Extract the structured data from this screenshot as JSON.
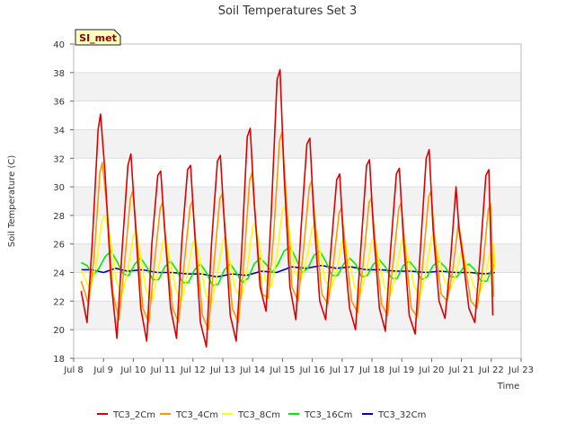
{
  "chart_data": {
    "type": "line",
    "title": "Soil Temperatures Set 3",
    "xlabel": "Time",
    "ylabel": "Soil Temperature (C)",
    "badge": "SI_met",
    "xlim": [
      8.0,
      23.0
    ],
    "ylim": [
      18,
      40
    ],
    "yticks": [
      18,
      20,
      22,
      24,
      26,
      28,
      30,
      32,
      34,
      36,
      38,
      40
    ],
    "xticks": [
      {
        "value": 8,
        "label": "Jul 8"
      },
      {
        "value": 9,
        "label": "Jul 9"
      },
      {
        "value": 10,
        "label": "Jul 10"
      },
      {
        "value": 11,
        "label": "Jul 11"
      },
      {
        "value": 12,
        "label": "Jul 12"
      },
      {
        "value": 13,
        "label": "Jul 13"
      },
      {
        "value": 14,
        "label": "Jul 14"
      },
      {
        "value": 15,
        "label": "Jul 15"
      },
      {
        "value": 16,
        "label": "Jul 16"
      },
      {
        "value": 17,
        "label": "Jul 17"
      },
      {
        "value": 18,
        "label": "Jul 18"
      },
      {
        "value": 19,
        "label": "Jul 19"
      },
      {
        "value": 20,
        "label": "Jul 20"
      },
      {
        "value": 21,
        "label": "Jul 21"
      },
      {
        "value": 22,
        "label": "Jul 22"
      },
      {
        "value": 23,
        "label": "Jul 23"
      }
    ],
    "band_color": "#f2f2f2",
    "series": [
      {
        "name": "TC3_2Cm",
        "color": "#dd0000",
        "x": [
          8.25,
          8.45,
          8.62,
          8.82,
          8.9,
          9.05,
          9.25,
          9.45,
          9.62,
          9.82,
          9.92,
          10.05,
          10.25,
          10.45,
          10.62,
          10.82,
          10.92,
          11.05,
          11.25,
          11.45,
          11.62,
          11.82,
          11.92,
          12.05,
          12.25,
          12.45,
          12.62,
          12.82,
          12.92,
          13.05,
          13.25,
          13.45,
          13.62,
          13.82,
          13.92,
          14.05,
          14.25,
          14.45,
          14.62,
          14.82,
          14.92,
          15.05,
          15.25,
          15.45,
          15.62,
          15.82,
          15.92,
          16.05,
          16.25,
          16.45,
          16.62,
          16.82,
          16.92,
          17.05,
          17.25,
          17.45,
          17.62,
          17.82,
          17.92,
          18.05,
          18.25,
          18.45,
          18.62,
          18.82,
          18.92,
          19.05,
          19.25,
          19.45,
          19.62,
          19.82,
          19.92,
          20.05,
          20.25,
          20.45,
          20.62,
          20.82,
          20.92,
          21.05,
          21.25,
          21.45,
          21.62,
          21.82,
          21.92,
          22.05
        ],
        "y": [
          22.7,
          20.5,
          26.0,
          34.0,
          35.1,
          31.0,
          23.5,
          19.4,
          25.5,
          31.5,
          32.3,
          28.0,
          21.5,
          19.2,
          26.0,
          30.8,
          31.1,
          27.0,
          21.5,
          19.4,
          26.0,
          31.2,
          31.5,
          27.0,
          20.5,
          18.8,
          26.0,
          31.8,
          32.2,
          27.5,
          21.0,
          19.2,
          25.0,
          33.5,
          34.1,
          29.0,
          23.0,
          21.3,
          28.0,
          37.5,
          38.2,
          31.0,
          23.0,
          20.7,
          27.0,
          33.0,
          33.4,
          28.0,
          22.0,
          20.7,
          25.5,
          30.5,
          30.9,
          26.0,
          21.5,
          20.0,
          25.5,
          31.5,
          31.9,
          27.0,
          21.5,
          19.9,
          25.5,
          30.9,
          31.3,
          26.5,
          21.0,
          19.7,
          25.5,
          32.0,
          32.6,
          27.0,
          22.0,
          20.8,
          24.5,
          30.0,
          27.0,
          25.0,
          21.5,
          20.5,
          25.0,
          30.8,
          31.2,
          21.0
        ]
      },
      {
        "name": "TC3_4Cm",
        "color": "#ff9900",
        "x": [
          8.25,
          8.5,
          8.68,
          8.88,
          8.96,
          9.12,
          9.32,
          9.52,
          9.7,
          9.9,
          9.98,
          10.12,
          10.32,
          10.52,
          10.7,
          10.9,
          10.98,
          11.12,
          11.32,
          11.52,
          11.7,
          11.9,
          11.98,
          12.12,
          12.32,
          12.52,
          12.7,
          12.9,
          12.98,
          13.12,
          13.32,
          13.52,
          13.7,
          13.9,
          13.98,
          14.12,
          14.32,
          14.52,
          14.7,
          14.9,
          14.98,
          15.12,
          15.32,
          15.52,
          15.7,
          15.9,
          15.98,
          16.12,
          16.32,
          16.52,
          16.7,
          16.9,
          16.98,
          17.12,
          17.32,
          17.52,
          17.7,
          17.9,
          17.98,
          18.12,
          18.32,
          18.52,
          18.7,
          18.9,
          18.98,
          19.12,
          19.32,
          19.52,
          19.7,
          19.9,
          19.98,
          20.12,
          20.32,
          20.52,
          20.7,
          20.9,
          20.98,
          21.12,
          21.32,
          21.52,
          21.7,
          21.9,
          21.98,
          22.08
        ],
        "y": [
          23.4,
          21.8,
          25.0,
          31.0,
          31.7,
          28.5,
          22.5,
          20.7,
          24.5,
          29.2,
          29.7,
          26.5,
          21.5,
          20.5,
          24.5,
          28.5,
          28.9,
          25.5,
          21.5,
          20.5,
          24.5,
          28.6,
          29.0,
          25.5,
          21.0,
          20.0,
          24.5,
          29.2,
          29.5,
          26.0,
          21.5,
          20.5,
          24.5,
          30.5,
          31.0,
          27.0,
          22.5,
          22.2,
          26.5,
          33.2,
          33.8,
          29.5,
          23.0,
          22.0,
          25.5,
          30.0,
          30.4,
          27.0,
          22.5,
          21.8,
          24.5,
          28.2,
          28.5,
          25.5,
          22.0,
          21.2,
          24.5,
          28.9,
          29.2,
          26.0,
          21.8,
          21.0,
          24.5,
          28.5,
          28.9,
          25.5,
          21.5,
          20.9,
          24.5,
          29.3,
          29.7,
          26.0,
          22.5,
          22.0,
          24.0,
          27.5,
          26.5,
          24.5,
          22.0,
          21.5,
          24.0,
          28.4,
          28.8,
          22.3
        ]
      },
      {
        "name": "TC3_8Cm",
        "color": "#ffff00",
        "x": [
          8.25,
          8.55,
          8.75,
          8.95,
          9.05,
          9.22,
          9.42,
          9.62,
          9.8,
          10.0,
          10.08,
          10.22,
          10.42,
          10.62,
          10.8,
          11.0,
          11.08,
          11.22,
          11.42,
          11.62,
          11.8,
          12.0,
          12.08,
          12.22,
          12.42,
          12.62,
          12.8,
          13.0,
          13.08,
          13.22,
          13.42,
          13.62,
          13.8,
          14.0,
          14.08,
          14.22,
          14.42,
          14.62,
          14.8,
          15.0,
          15.08,
          15.22,
          15.42,
          15.62,
          15.8,
          16.0,
          16.08,
          16.22,
          16.42,
          16.62,
          16.8,
          17.0,
          17.08,
          17.22,
          17.42,
          17.62,
          17.8,
          18.0,
          18.08,
          18.22,
          18.42,
          18.62,
          18.8,
          19.0,
          19.08,
          19.22,
          19.42,
          19.62,
          19.8,
          20.0,
          20.08,
          20.22,
          20.42,
          20.62,
          20.8,
          21.0,
          21.08,
          21.22,
          21.42,
          21.62,
          21.8,
          22.0,
          22.08,
          22.12
        ],
        "y": [
          24.2,
          22.8,
          24.5,
          27.7,
          28.0,
          26.5,
          23.5,
          22.4,
          24.0,
          26.6,
          26.8,
          25.5,
          22.8,
          22.0,
          23.8,
          26.2,
          26.4,
          25.0,
          22.8,
          22.0,
          23.8,
          26.1,
          26.3,
          25.0,
          22.5,
          21.8,
          23.8,
          26.2,
          26.5,
          25.0,
          22.8,
          22.2,
          24.0,
          27.2,
          27.5,
          26.0,
          23.5,
          23.0,
          25.0,
          28.4,
          28.6,
          27.0,
          24.0,
          23.5,
          24.8,
          27.2,
          27.4,
          26.0,
          23.5,
          22.8,
          24.0,
          26.2,
          26.4,
          25.0,
          23.0,
          22.5,
          24.0,
          26.3,
          26.5,
          25.0,
          23.0,
          22.4,
          24.0,
          26.2,
          26.4,
          25.0,
          23.0,
          22.4,
          24.0,
          26.5,
          26.7,
          25.3,
          23.5,
          22.8,
          23.8,
          25.5,
          25.0,
          24.3,
          23.0,
          22.6,
          23.8,
          25.8,
          26.0,
          24.2
        ]
      },
      {
        "name": "TC3_16Cm",
        "color": "#00ee00",
        "x": [
          8.25,
          8.45,
          8.65,
          8.85,
          9.05,
          9.25,
          9.45,
          9.65,
          9.85,
          10.05,
          10.25,
          10.45,
          10.65,
          10.85,
          11.05,
          11.25,
          11.45,
          11.65,
          11.85,
          12.05,
          12.25,
          12.45,
          12.65,
          12.85,
          13.05,
          13.25,
          13.45,
          13.65,
          13.85,
          14.05,
          14.25,
          14.45,
          14.65,
          14.85,
          15.05,
          15.25,
          15.45,
          15.65,
          15.85,
          16.05,
          16.25,
          16.45,
          16.65,
          16.85,
          17.05,
          17.25,
          17.45,
          17.65,
          17.85,
          18.05,
          18.25,
          18.45,
          18.65,
          18.85,
          19.05,
          19.25,
          19.45,
          19.65,
          19.85,
          20.05,
          20.25,
          20.45,
          20.65,
          20.85,
          21.05,
          21.25,
          21.45,
          21.65,
          21.85,
          22.05,
          22.12
        ],
        "y": [
          24.7,
          24.5,
          23.8,
          24.3,
          25.1,
          25.5,
          24.8,
          23.9,
          23.8,
          24.6,
          25.0,
          24.4,
          23.5,
          23.5,
          24.4,
          24.8,
          24.2,
          23.3,
          23.3,
          24.2,
          24.6,
          24.0,
          23.1,
          23.2,
          24.2,
          24.6,
          24.0,
          23.3,
          23.6,
          24.6,
          25.0,
          24.6,
          24.0,
          24.6,
          25.5,
          25.8,
          25.0,
          24.0,
          24.3,
          25.2,
          25.5,
          24.8,
          23.8,
          23.8,
          24.6,
          25.0,
          24.6,
          23.7,
          23.8,
          24.6,
          24.9,
          24.4,
          23.6,
          23.6,
          24.5,
          24.8,
          24.3,
          23.5,
          23.7,
          24.5,
          24.8,
          24.4,
          23.7,
          23.7,
          24.3,
          24.6,
          24.2,
          23.4,
          23.4,
          24.4,
          24.6
        ]
      },
      {
        "name": "TC3_32Cm",
        "color": "#0000bb",
        "x": [
          8.25,
          8.6,
          9.0,
          9.4,
          9.8,
          10.3,
          10.8,
          11.3,
          11.8,
          12.3,
          12.8,
          13.3,
          13.8,
          14.3,
          14.8,
          15.3,
          15.8,
          16.3,
          16.8,
          17.3,
          17.8,
          18.3,
          18.8,
          19.3,
          19.8,
          20.3,
          20.8,
          21.3,
          21.8,
          22.12
        ],
        "y": [
          24.2,
          24.2,
          24.0,
          24.3,
          24.1,
          24.2,
          24.0,
          24.0,
          23.9,
          23.9,
          23.7,
          23.9,
          23.8,
          24.1,
          24.0,
          24.4,
          24.3,
          24.5,
          24.3,
          24.4,
          24.2,
          24.2,
          24.1,
          24.1,
          24.0,
          24.1,
          24.0,
          24.0,
          23.9,
          24.0
        ]
      }
    ]
  }
}
